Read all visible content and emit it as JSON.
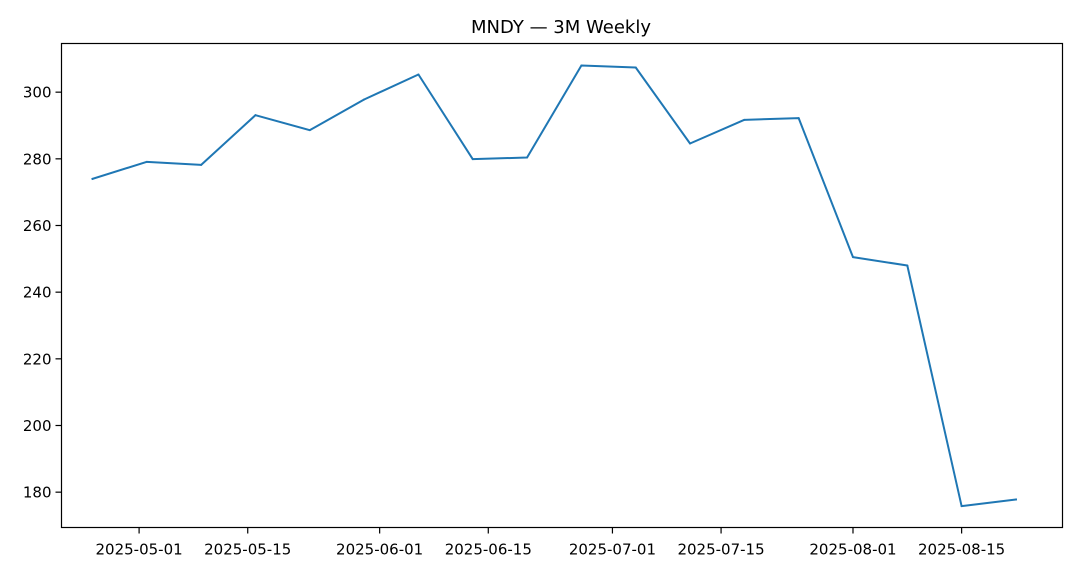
{
  "chart_data": {
    "type": "line",
    "title": "MNDY — 3M Weekly",
    "xlabel": "",
    "ylabel": "",
    "x_tick_labels": [
      "2025-05-01",
      "2025-05-15",
      "2025-06-01",
      "2025-06-15",
      "2025-07-01",
      "2025-07-15",
      "2025-08-01",
      "2025-08-15"
    ],
    "y_ticks": [
      180,
      200,
      220,
      240,
      260,
      280,
      300
    ],
    "xlim": [
      "2025-04-21",
      "2025-08-28"
    ],
    "ylim": [
      169.4,
      314.6
    ],
    "grid": false,
    "legend": "none",
    "series": [
      {
        "color": "#1f77b4",
        "x": [
          "2025-04-25",
          "2025-05-02",
          "2025-05-09",
          "2025-05-16",
          "2025-05-23",
          "2025-05-30",
          "2025-06-06",
          "2025-06-13",
          "2025-06-20",
          "2025-06-27",
          "2025-07-04",
          "2025-07-11",
          "2025-07-18",
          "2025-07-25",
          "2025-08-01",
          "2025-08-08",
          "2025-08-15",
          "2025-08-22"
        ],
        "values": [
          274.0,
          279.1,
          278.2,
          293.1,
          288.6,
          297.8,
          305.3,
          279.9,
          280.4,
          308.0,
          307.4,
          284.6,
          291.7,
          292.2,
          250.5,
          248.0,
          175.8,
          177.8
        ]
      }
    ]
  }
}
